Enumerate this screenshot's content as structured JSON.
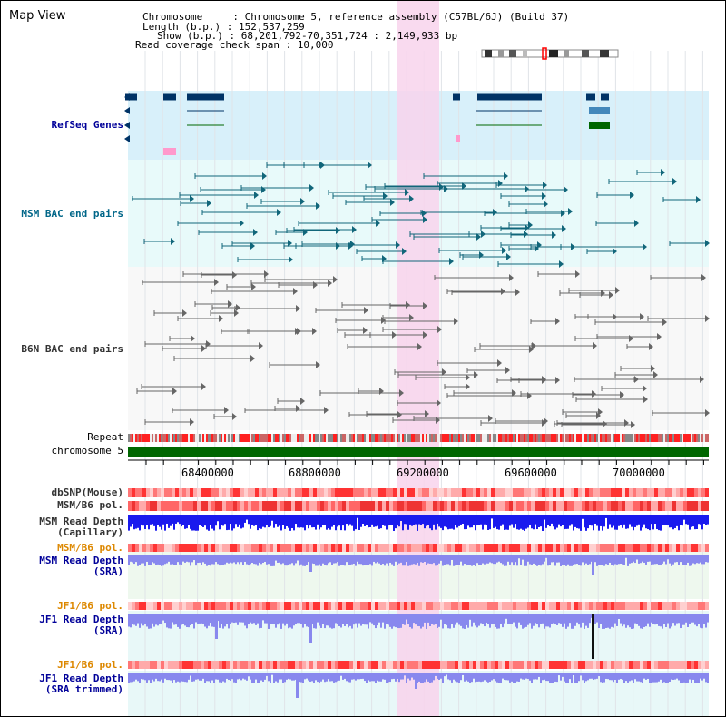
{
  "title": "Map View",
  "header": {
    "chromosome_line": "Chromosome     : Chromosome 5, reference assembly (C57BL/6J) (Build 37)",
    "length_line": "Length (b.p.) : 152,537,259",
    "show_line": "Show (b.p.) : 68,201,792-70,351,724 : 2,149,933 bp",
    "coverage_line": "Read coverage check span : 10,000"
  },
  "tracks": {
    "refseq": "RefSeq Genes",
    "msm_bac": "MSM BAC end pairs",
    "b6n_bac": "B6N BAC end pairs",
    "repeat": "Repeat",
    "chromosome": "chromosome 5",
    "dbsnp": "dbSNP(Mouse)",
    "msm_b6_pol_1": "MSM/B6 pol.",
    "msm_depth_cap_1": "MSM Read Depth",
    "msm_depth_cap_2": "(Capillary)",
    "msm_b6_pol_2": "MSM/B6 pol.",
    "msm_depth_sra_1": "MSM Read Depth",
    "msm_depth_sra_2": "(SRA)",
    "jf1_b6_pol_1": "JF1/B6 pol.",
    "jf1_depth_sra_1": "JF1 Read Depth",
    "jf1_depth_sra_2": "(SRA)",
    "jf1_b6_pol_2": "JF1/B6 pol.",
    "jf1_depth_trim_1": "JF1 Read Depth",
    "jf1_depth_trim_2": "(SRA trimmed)"
  },
  "axis": {
    "ticks": [
      "68400000",
      "68800000",
      "69200000",
      "69600000",
      "70000000"
    ]
  },
  "colors": {
    "refseq_bg": "#d8f0fa",
    "msm_bg": "#e8fafa",
    "b6n_bg": "#f8f8f8",
    "highlight": "#f8d4ec",
    "gene_dark": "#003366",
    "gene_mid": "#4488bb",
    "gene_green": "#006600",
    "gene_pink": "#ff99cc",
    "msm_feature": "#11667a",
    "b6n_feature": "#666666",
    "chromosome_bar": "#006600",
    "depth_dark": "#1a1aee",
    "depth_light": "#8888ee"
  }
}
